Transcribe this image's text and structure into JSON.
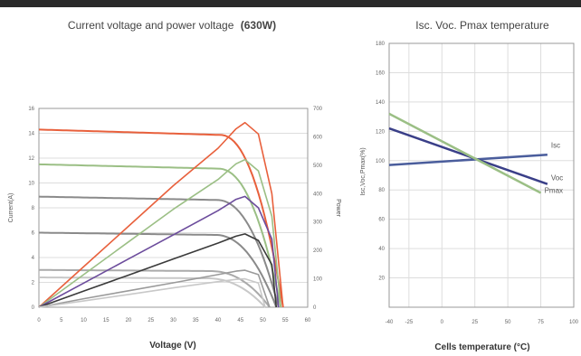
{
  "chart_data": [
    {
      "type": "line",
      "title": "Current voltage and power voltage",
      "title_bold": "(630W)",
      "xlabel": "Voltage (V)",
      "ylabel": "Current(A)",
      "y2label": "Power",
      "xlim": [
        0,
        60
      ],
      "ylim": [
        0,
        16
      ],
      "y2lim": [
        0,
        700
      ],
      "x_ticks": [
        0,
        5,
        10,
        15,
        20,
        25,
        30,
        35,
        40,
        45,
        50,
        55,
        60
      ],
      "y_ticks": [
        0,
        2,
        4,
        6,
        8,
        10,
        12,
        14,
        16
      ],
      "y2_ticks": [
        0,
        100,
        200,
        300,
        400,
        500,
        600,
        700
      ],
      "grid": true,
      "iv_curves": [
        {
          "color": "#e8603c",
          "isc": 14.3,
          "voc": 54.5
        },
        {
          "color": "#9bbf85",
          "isc": 11.5,
          "voc": 54
        },
        {
          "color": "#8a8a8a",
          "isc": 8.9,
          "voc": 53.5
        },
        {
          "color": "#8a8a8a",
          "isc": 6.0,
          "voc": 53
        },
        {
          "color": "#aaaaaa",
          "isc": 3.0,
          "voc": 51.5
        },
        {
          "color": "#c8c8c8",
          "isc": 2.4,
          "voc": 50.5
        }
      ],
      "power_curves": [
        {
          "color": "#e8603c",
          "x": [
            0,
            10,
            20,
            30,
            40,
            44,
            46,
            49,
            52,
            54.5
          ],
          "y": [
            0,
            143,
            285,
            428,
            560,
            628,
            650,
            610,
            400,
            0
          ]
        },
        {
          "color": "#9bbf85",
          "x": [
            0,
            10,
            20,
            30,
            40,
            44,
            46,
            49,
            52,
            54
          ],
          "y": [
            0,
            115,
            230,
            345,
            450,
            505,
            520,
            480,
            320,
            0
          ]
        },
        {
          "color": "#6c4c9c",
          "x": [
            0,
            10,
            20,
            30,
            40,
            44,
            46,
            49,
            52,
            53.5
          ],
          "y": [
            0,
            85,
            170,
            255,
            340,
            380,
            390,
            350,
            240,
            0
          ]
        },
        {
          "color": "#3a3a3a",
          "x": [
            0,
            10,
            20,
            30,
            40,
            44,
            46,
            49,
            52,
            53
          ],
          "y": [
            0,
            57,
            113,
            170,
            226,
            250,
            258,
            235,
            150,
            0
          ]
        },
        {
          "color": "#9a9a9a",
          "x": [
            0,
            10,
            20,
            30,
            40,
            44,
            46,
            49,
            51.5
          ],
          "y": [
            0,
            30,
            58,
            86,
            115,
            127,
            130,
            115,
            0
          ]
        },
        {
          "color": "#c8c8c8",
          "x": [
            0,
            10,
            20,
            30,
            40,
            44,
            46,
            49,
            50.5
          ],
          "y": [
            0,
            22,
            45,
            68,
            90,
            98,
            100,
            85,
            0
          ]
        }
      ]
    },
    {
      "type": "line",
      "title": "Isc. Voc. Pmax temperature",
      "xlabel": "Cells temperature (°C)",
      "ylabel": "Isc,Voc,Pmax(%)",
      "xlim": [
        -40,
        100
      ],
      "ylim": [
        0,
        180
      ],
      "x_ticks": [
        -40,
        -25,
        0,
        25,
        50,
        75,
        100
      ],
      "y_ticks": [
        20,
        40,
        60,
        80,
        100,
        120,
        140,
        160,
        180
      ],
      "grid": true,
      "series": [
        {
          "name": "Isc",
          "color": "#4a5d9c",
          "x": [
            -40,
            80
          ],
          "y": [
            97,
            104
          ]
        },
        {
          "name": "Voc",
          "color": "#3a3f88",
          "x": [
            -40,
            80
          ],
          "y": [
            122,
            84
          ]
        },
        {
          "name": "Pmax",
          "color": "#9bbf85",
          "x": [
            -40,
            75
          ],
          "y": [
            132,
            78
          ]
        }
      ]
    }
  ]
}
